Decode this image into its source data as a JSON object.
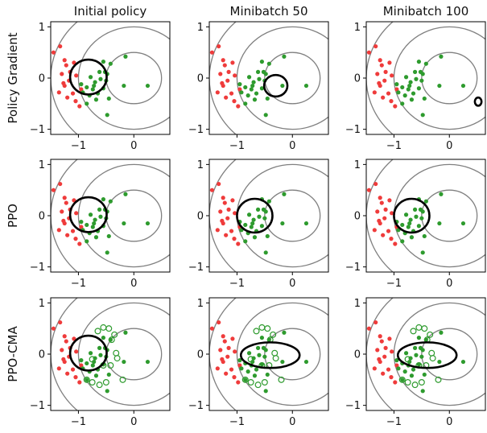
{
  "chart_data": {
    "type": "scatter",
    "column_titles": [
      "Initial policy",
      "Minibatch 50",
      "Minibatch 100"
    ],
    "row_titles": [
      "Policy Gradient",
      "PPO",
      "PPO-CMA"
    ],
    "xticks": [
      {
        "value": -1,
        "label": "−1"
      },
      {
        "value": 0,
        "label": "0"
      }
    ],
    "yticks": [
      {
        "value": 1,
        "label": "1"
      },
      {
        "value": 0,
        "label": "0"
      },
      {
        "value": -1,
        "label": "−1"
      }
    ],
    "xlim": [
      -1.5,
      0.65
    ],
    "ylim": [
      -1.1,
      1.1
    ],
    "grid": false,
    "circles": [
      {
        "cx": 0,
        "cy": 0,
        "r": 0.5
      },
      {
        "cx": 0,
        "cy": 0,
        "r": 1.0
      },
      {
        "cx": 0,
        "cy": 0,
        "r": 1.5
      }
    ],
    "colors": {
      "negative": "#ef3b3b",
      "positive": "#2e9b2e",
      "ellipse": "#000000",
      "contours": "#808080"
    },
    "negative_points": [
      [
        -1.45,
        0.5
      ],
      [
        -1.33,
        0.62
      ],
      [
        -1.25,
        0.35
      ],
      [
        -1.22,
        0.25
      ],
      [
        -1.3,
        0.08
      ],
      [
        -1.15,
        0.12
      ],
      [
        -1.08,
        0.3
      ],
      [
        -1.04,
        0.05
      ],
      [
        -1.17,
        -0.05
      ],
      [
        -1.25,
        -0.15
      ],
      [
        -1.1,
        -0.3
      ],
      [
        -1.2,
        -0.38
      ],
      [
        -1.05,
        -0.45
      ],
      [
        -0.98,
        -0.55
      ],
      [
        -0.95,
        -0.22
      ],
      [
        -1.35,
        -0.28
      ],
      [
        -1.27,
        -0.1
      ]
    ],
    "positive_points": [
      [
        -0.55,
        0.32
      ],
      [
        -0.52,
        0.12
      ],
      [
        -0.6,
        -0.02
      ],
      [
        -0.48,
        0.08
      ],
      [
        -0.7,
        -0.08
      ],
      [
        -0.78,
        0.02
      ],
      [
        -0.74,
        -0.22
      ],
      [
        -0.65,
        -0.3
      ],
      [
        -0.55,
        -0.2
      ],
      [
        -0.5,
        -0.05
      ],
      [
        -0.85,
        -0.18
      ],
      [
        -0.8,
        -0.34
      ],
      [
        -0.92,
        -0.28
      ],
      [
        -0.68,
        -0.42
      ],
      [
        -0.85,
        -0.5
      ],
      [
        -0.95,
        -0.12
      ],
      [
        -0.45,
        -0.4
      ],
      [
        -0.48,
        -0.72
      ],
      [
        -0.62,
        0.12
      ],
      [
        -0.72,
        -0.15
      ],
      [
        -0.15,
        0.42
      ],
      [
        -0.18,
        -0.15
      ],
      [
        0.25,
        -0.15
      ],
      [
        -0.42,
        0.28
      ]
    ],
    "hollow_points_ppo_cma": [
      [
        -0.55,
        0.52
      ],
      [
        -0.45,
        0.5
      ],
      [
        -0.35,
        0.38
      ],
      [
        -0.4,
        0.28
      ],
      [
        -0.32,
        0.02
      ],
      [
        -0.3,
        -0.08
      ],
      [
        -0.42,
        -0.22
      ],
      [
        -0.55,
        -0.22
      ],
      [
        -0.75,
        -0.55
      ],
      [
        -0.85,
        -0.5
      ],
      [
        -0.62,
        -0.6
      ],
      [
        -0.5,
        -0.55
      ],
      [
        -0.2,
        -0.5
      ],
      [
        -0.65,
        0.45
      ],
      [
        -0.75,
        -0.1
      ]
    ],
    "panels": [
      {
        "row": 0,
        "col": 0,
        "ellipse": {
          "cx": -0.82,
          "cy": 0.02,
          "rx": 0.33,
          "ry": 0.34
        }
      },
      {
        "row": 0,
        "col": 1,
        "ellipse": {
          "cx": -0.3,
          "cy": -0.15,
          "rx": 0.21,
          "ry": 0.21
        }
      },
      {
        "row": 0,
        "col": 2,
        "ellipse": {
          "cx": 0.52,
          "cy": -0.46,
          "rx": 0.06,
          "ry": 0.08
        }
      },
      {
        "row": 1,
        "col": 0,
        "ellipse": {
          "cx": -0.82,
          "cy": 0.02,
          "rx": 0.33,
          "ry": 0.34
        }
      },
      {
        "row": 1,
        "col": 1,
        "ellipse": {
          "cx": -0.68,
          "cy": 0.0,
          "rx": 0.32,
          "ry": 0.33
        }
      },
      {
        "row": 1,
        "col": 2,
        "ellipse": {
          "cx": -0.68,
          "cy": 0.0,
          "rx": 0.32,
          "ry": 0.33
        }
      },
      {
        "row": 2,
        "col": 0,
        "ellipse": {
          "cx": -0.82,
          "cy": 0.02,
          "rx": 0.33,
          "ry": 0.34
        }
      },
      {
        "row": 2,
        "col": 1,
        "ellipse": {
          "cx": -0.4,
          "cy": -0.02,
          "rx": 0.53,
          "ry": 0.25
        }
      },
      {
        "row": 2,
        "col": 2,
        "ellipse": {
          "cx": -0.4,
          "cy": -0.02,
          "rx": 0.53,
          "ry": 0.25
        }
      }
    ]
  }
}
